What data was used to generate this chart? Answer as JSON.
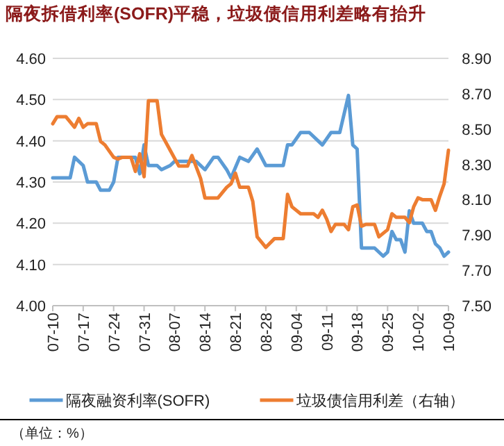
{
  "chart_data": {
    "type": "line",
    "title": "隔夜拆借利率(SOFR)平稳，垃圾债信用利差略有抬升",
    "xlim": [
      "--07-10",
      "--10-09"
    ],
    "xticks": [
      {
        "value": "--07-10",
        "label": "07-10"
      },
      {
        "value": "--07-17",
        "label": "07-17"
      },
      {
        "value": "--07-24",
        "label": "07-24"
      },
      {
        "value": "--07-31",
        "label": "07-31"
      },
      {
        "value": "--08-07",
        "label": "08-07"
      },
      {
        "value": "--08-14",
        "label": "08-14"
      },
      {
        "value": "--08-21",
        "label": "08-21"
      },
      {
        "value": "--08-28",
        "label": "08-28"
      },
      {
        "value": "--09-04",
        "label": "09-04"
      },
      {
        "value": "--09-11",
        "label": "09-11"
      },
      {
        "value": "--09-18",
        "label": "09-18"
      },
      {
        "value": "--09-25",
        "label": "09-25"
      },
      {
        "value": "--10-02",
        "label": "10-02"
      },
      {
        "value": "--10-09",
        "label": "10-09"
      }
    ],
    "ylim": [
      4.0,
      4.6
    ],
    "yticks": [
      {
        "value": 4.0,
        "label": "4.00"
      },
      {
        "value": 4.1,
        "label": "4.10"
      },
      {
        "value": 4.2,
        "label": "4.20"
      },
      {
        "value": 4.3,
        "label": "4.30"
      },
      {
        "value": 4.4,
        "label": "4.40"
      },
      {
        "value": 4.5,
        "label": "4.50"
      },
      {
        "value": 4.6,
        "label": "4.60"
      }
    ],
    "y2lim": [
      7.5,
      8.9
    ],
    "y2ticks": [
      {
        "value": 7.5,
        "label": "7.50"
      },
      {
        "value": 7.7,
        "label": "7.70"
      },
      {
        "value": 7.9,
        "label": "7.90"
      },
      {
        "value": 8.1,
        "label": "8.10"
      },
      {
        "value": 8.3,
        "label": "8.30"
      },
      {
        "value": 8.5,
        "label": "8.50"
      },
      {
        "value": 8.7,
        "label": "8.70"
      },
      {
        "value": 8.9,
        "label": "8.90"
      }
    ],
    "grid": "y",
    "legend": "bottom",
    "annotations": [
      "（单位：%）"
    ],
    "series": [
      {
        "name": "隔夜融资利率(SOFR)",
        "color": "#5b9bd5",
        "x": [
          "--07-10",
          "--07-14",
          "--07-15",
          "--07-17",
          "--07-18",
          "--07-20",
          "--07-21",
          "--07-23",
          "--07-24",
          "--07-25",
          "--07-29",
          "--07-30",
          "--07-31",
          "--08-01",
          "--08-03",
          "--08-04",
          "--08-06",
          "--08-07",
          "--08-12",
          "--08-14",
          "--08-16",
          "--08-17",
          "--08-19",
          "--08-20",
          "--08-22",
          "--08-24",
          "--08-26",
          "--08-28",
          "--09-01",
          "--09-02",
          "--09-03",
          "--09-05",
          "--09-07",
          "--09-09",
          "--09-10",
          "--09-12",
          "--09-13",
          "--09-14",
          "--09-16",
          "--09-17",
          "--09-18",
          "--09-19",
          "--09-22",
          "--09-24",
          "--09-25",
          "--09-26",
          "--09-27",
          "--09-28",
          "--09-29",
          "--09-30",
          "--10-01",
          "--10-03",
          "--10-04",
          "--10-05",
          "--10-06",
          "--10-07",
          "--10-08",
          "--10-09"
        ],
        "values": [
          4.31,
          4.31,
          4.36,
          4.34,
          4.3,
          4.3,
          4.28,
          4.28,
          4.3,
          4.36,
          4.36,
          4.32,
          4.39,
          4.34,
          4.34,
          4.33,
          4.34,
          4.35,
          4.35,
          4.33,
          4.36,
          4.36,
          4.33,
          4.31,
          4.36,
          4.35,
          4.38,
          4.34,
          4.34,
          4.39,
          4.39,
          4.42,
          4.42,
          4.4,
          4.39,
          4.42,
          4.42,
          4.42,
          4.51,
          4.39,
          4.38,
          4.14,
          4.14,
          4.12,
          4.13,
          4.18,
          4.16,
          4.16,
          4.13,
          4.23,
          4.2,
          4.2,
          4.18,
          4.18,
          4.15,
          4.14,
          4.12,
          4.13
        ]
      },
      {
        "name": "垃圾债信用利差（右轴）",
        "color": "#ed7d31",
        "axis": "y2",
        "x": [
          "--07-10",
          "--07-11",
          "--07-13",
          "--07-15",
          "--07-16",
          "--07-17",
          "--07-18",
          "--07-20",
          "--07-21",
          "--07-22",
          "--07-24",
          "--07-25",
          "--07-26",
          "--07-28",
          "--07-29",
          "--07-30",
          "--07-31",
          "--08-01",
          "--08-03",
          "--08-04",
          "--08-06",
          "--08-08",
          "--08-10",
          "--08-11",
          "--08-13",
          "--08-14",
          "--08-17",
          "--08-19",
          "--08-20",
          "--08-21",
          "--08-22",
          "--08-24",
          "--08-25",
          "--08-26",
          "--08-28",
          "--08-30",
          "--09-01",
          "--09-02",
          "--09-03",
          "--09-05",
          "--09-08",
          "--09-09",
          "--09-10",
          "--09-11",
          "--09-12",
          "--09-13",
          "--09-15",
          "--09-16",
          "--09-17",
          "--09-18",
          "--09-19",
          "--09-20",
          "--09-22",
          "--09-23",
          "--09-25",
          "--09-26",
          "--09-27",
          "--09-29",
          "--09-30",
          "--10-01",
          "--10-02",
          "--10-03",
          "--10-05",
          "--10-06",
          "--10-07",
          "--10-08",
          "--10-09"
        ],
        "values": [
          8.53,
          8.57,
          8.57,
          8.51,
          8.56,
          8.51,
          8.53,
          8.53,
          8.43,
          8.41,
          8.34,
          8.33,
          8.34,
          8.34,
          8.26,
          8.36,
          8.23,
          8.66,
          8.66,
          8.47,
          8.38,
          8.29,
          8.29,
          8.35,
          8.22,
          8.11,
          8.11,
          8.17,
          8.19,
          8.25,
          8.17,
          8.17,
          8.09,
          7.89,
          7.83,
          7.88,
          7.88,
          8.13,
          8.06,
          8.02,
          8.02,
          8.0,
          8.04,
          7.99,
          7.92,
          7.96,
          7.96,
          7.93,
          8.06,
          8.07,
          7.95,
          7.96,
          7.96,
          7.89,
          7.93,
          8.02,
          8.0,
          8.0,
          7.97,
          8.06,
          8.11,
          8.1,
          8.1,
          8.04,
          8.12,
          8.19,
          8.38
        ]
      }
    ]
  }
}
